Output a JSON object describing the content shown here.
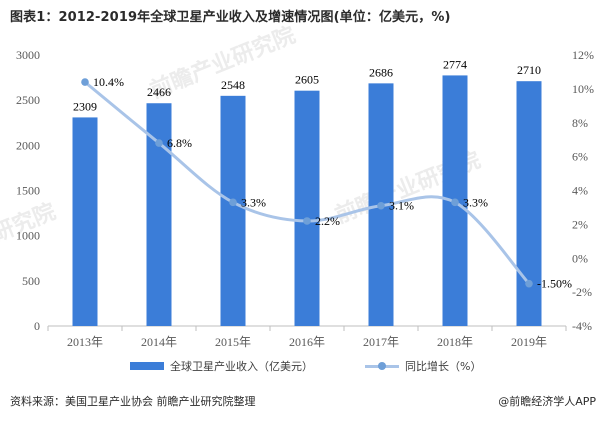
{
  "title": "图表1：2012-2019年全球卫星产业收入及增速情况图(单位：亿美元，%)",
  "source_text": "资料来源：美国卫星产业协会 前瞻产业研究院整理",
  "brand_text": "@前瞻经济学人APP",
  "watermarks": [
    "前瞻产业研究院",
    "前瞻产业研究院",
    "研究院"
  ],
  "colors": {
    "bar": "#3b7dd8",
    "line": "#a9c4e8",
    "marker": "#6e9fd8"
  },
  "chart_data": {
    "type": "bar",
    "categories": [
      "2013年",
      "2014年",
      "2015年",
      "2016年",
      "2017年",
      "2018年",
      "2019年"
    ],
    "series": [
      {
        "name": "全球卫星产业收入（亿美元）",
        "type": "bar",
        "axis": "left",
        "values": [
          2309,
          2466,
          2548,
          2605,
          2686,
          2774,
          2710
        ],
        "labels": [
          "2309",
          "2466",
          "2548",
          "2605",
          "2686",
          "2774",
          "2710"
        ]
      },
      {
        "name": "同比增长（%）",
        "type": "line",
        "axis": "right",
        "values": [
          10.4,
          6.8,
          3.3,
          2.2,
          3.1,
          3.3,
          -1.5
        ],
        "labels": [
          "10.4%",
          "6.8%",
          "3.3%",
          "2.2%",
          "3.1%",
          "3.3%",
          "-1.50%"
        ]
      }
    ],
    "y_left": {
      "min": 0,
      "max": 3000,
      "ticks": [
        "0",
        "500",
        "1000",
        "1500",
        "2000",
        "2500",
        "3000"
      ]
    },
    "y_right": {
      "min": -4,
      "max": 12,
      "ticks": [
        "-4%",
        "-2%",
        "0%",
        "2%",
        "4%",
        "6%",
        "8%",
        "10%",
        "12%"
      ]
    },
    "grid": false,
    "legend": "bottom"
  }
}
